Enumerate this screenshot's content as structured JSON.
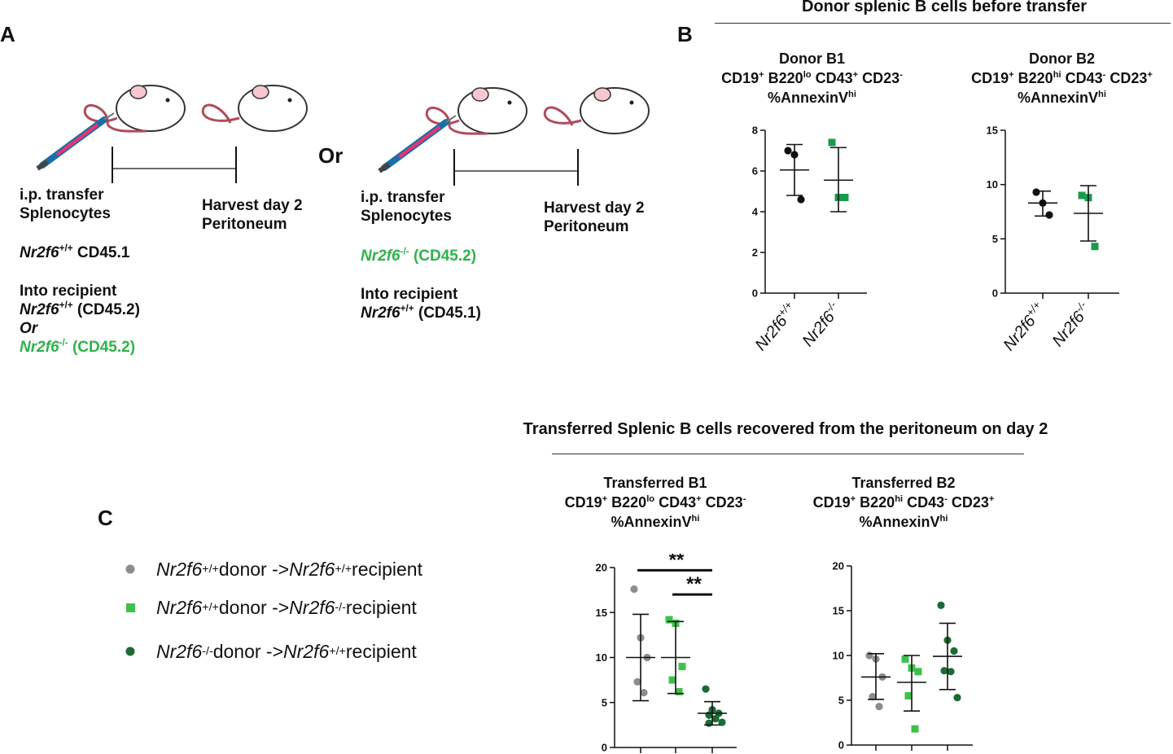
{
  "panels": {
    "a": "A",
    "b": "B",
    "c": "C"
  },
  "panel_a": {
    "or_between": "Or",
    "left": {
      "transfer_line1": "i.p. transfer",
      "transfer_line2": "Splenocytes",
      "harvest_line1": "Harvest day 2",
      "harvest_line2": "Peritoneum",
      "donor_gene": "Nr2f6",
      "donor_sup": "+/+",
      "donor_marker": " CD45.1",
      "into": "Into recipient",
      "rec1_gene": "Nr2f6",
      "rec1_sup": "+/+",
      "rec1_marker": " (CD45.2)",
      "or_word": "Or",
      "rec2_gene": "Nr2f6",
      "rec2_sup": "-/-",
      "rec2_marker": " (CD45.2)"
    },
    "right": {
      "transfer_line1": "i.p. transfer",
      "transfer_line2": "Splenocytes",
      "harvest_line1": "Harvest day 2",
      "harvest_line2": "Peritoneum",
      "donor_gene": "Nr2f6",
      "donor_sup": "-/-",
      "donor_marker": " (CD45.2)",
      "into": "Into recipient",
      "rec_gene": "Nr2f6",
      "rec_sup": "+/+",
      "rec_marker": " (CD45.1)"
    }
  },
  "panel_b": {
    "header": "Donor splenic B cells before transfer",
    "chart1_title": {
      "l1": "Donor B1",
      "l2a": "CD19",
      "l2b": "+",
      "l2c": " B220",
      "l2d": "lo",
      "l2e": " CD43",
      "l2f": "+",
      "l2g": " CD23",
      "l2h": "-",
      "l3a": "%AnnexinV",
      "l3b": "hi"
    },
    "chart2_title": {
      "l1": "Donor B2",
      "l2a": "CD19",
      "l2b": "+",
      "l2c": " B220",
      "l2d": "hi",
      "l2e": " CD43",
      "l2f": "-",
      "l2g": " CD23",
      "l2h": "+",
      "l3a": "%AnnexinV",
      "l3b": "hi"
    }
  },
  "panel_c": {
    "header": "Transferred Splenic B cells recovered from the peritoneum on day 2",
    "chart1_title": {
      "l1": "Transferred B1",
      "l2a": "CD19",
      "l2b": "+",
      "l2c": " B220",
      "l2d": "lo",
      "l2e": " CD43",
      "l2f": "+",
      "l2g": " CD23",
      "l2h": "-",
      "l3a": "%AnnexinV",
      "l3b": "hi"
    },
    "chart2_title": {
      "l1": "Transferred B2",
      "l2a": "CD19",
      "l2b": "+",
      "l2c": " B220",
      "l2d": "hi",
      "l2e": " CD43",
      "l2f": "-",
      "l2g": " CD23",
      "l2h": "+",
      "l3a": "%AnnexinV",
      "l3b": "hi"
    },
    "legend": [
      {
        "g1": "Nr2f6",
        "s1": "+/+",
        "mid": " donor -> ",
        "g2": "Nr2f6",
        "s2": "+/+",
        "end": " recipient",
        "color": "#8c8c8c",
        "marker": "circle"
      },
      {
        "g1": "Nr2f6",
        "s1": "+/+",
        "mid": " donor -> ",
        "g2": "Nr2f6",
        "s2": "-/-",
        "end": " recipient",
        "color": "#3ec14a",
        "marker": "square"
      },
      {
        "g1": "Nr2f6",
        "s1": "-/-",
        "mid": " donor -> ",
        "g2": "Nr2f6",
        "s2": "+/+",
        "end": " recipient",
        "color": "#1a6b34",
        "marker": "circle"
      }
    ]
  },
  "chart_data": [
    {
      "id": "b1",
      "type": "scatter",
      "title": "Donor B1 CD19+ B220lo CD43+ CD23- %AnnexinVhi",
      "ylim": [
        0,
        8
      ],
      "yticks": [
        0,
        2,
        4,
        6,
        8
      ],
      "categories": [
        "Nr2f6+/+",
        "Nr2f6-/-"
      ],
      "cat_gene": [
        "Nr2f6",
        "Nr2f6"
      ],
      "cat_sup": [
        "+/+",
        "-/-"
      ],
      "series": [
        {
          "name": "Nr2f6+/+",
          "color": "#111111",
          "marker": "circle",
          "points": [
            7.0,
            6.8,
            4.6
          ],
          "mean": 6.05,
          "err": [
            4.8,
            7.3
          ]
        },
        {
          "name": "Nr2f6-/-",
          "color": "#1a9a4e",
          "marker": "square",
          "points": [
            7.4,
            4.7,
            4.7
          ],
          "mean": 5.55,
          "err": [
            4.0,
            7.15
          ]
        }
      ],
      "significance": []
    },
    {
      "id": "b2",
      "type": "scatter",
      "title": "Donor B2 CD19+ B220hi CD43- CD23+ %AnnexinVhi",
      "ylim": [
        0,
        15
      ],
      "yticks": [
        0,
        5,
        10,
        15
      ],
      "categories": [
        "Nr2f6+/+",
        "Nr2f6-/-"
      ],
      "cat_gene": [
        "Nr2f6",
        "Nr2f6"
      ],
      "cat_sup": [
        "+/+",
        "-/-"
      ],
      "series": [
        {
          "name": "Nr2f6+/+",
          "color": "#111111",
          "marker": "circle",
          "points": [
            9.3,
            8.3,
            7.2
          ],
          "mean": 8.3,
          "err": [
            7.1,
            9.4
          ]
        },
        {
          "name": "Nr2f6-/-",
          "color": "#1a9a4e",
          "marker": "square",
          "points": [
            9.0,
            8.8,
            4.3
          ],
          "mean": 7.35,
          "err": [
            4.8,
            9.9
          ]
        }
      ],
      "significance": []
    },
    {
      "id": "c1",
      "type": "scatter",
      "title": "Transferred B1 CD19+ B220lo CD43+ CD23- %AnnexinVhi",
      "ylim": [
        0,
        20
      ],
      "yticks": [
        0,
        5,
        10,
        15,
        20
      ],
      "categories": [
        "",
        "",
        ""
      ],
      "series": [
        {
          "name": "Nr2f6+/+ donor -> Nr2f6+/+ recipient",
          "color": "#8c8c8c",
          "marker": "circle",
          "points": [
            17.6,
            12.2,
            10.0,
            7.3,
            6.1
          ],
          "mean": 10.0,
          "err": [
            5.2,
            14.8
          ]
        },
        {
          "name": "Nr2f6+/+ donor -> Nr2f6-/- recipient",
          "color": "#3ec14a",
          "marker": "square",
          "points": [
            14.2,
            13.8,
            9.0,
            7.5,
            6.2
          ],
          "mean": 10.0,
          "err": [
            6.0,
            14.0
          ]
        },
        {
          "name": "Nr2f6-/- donor -> Nr2f6+/+ recipient",
          "color": "#1a6b34",
          "marker": "circle",
          "points": [
            6.5,
            4.2,
            3.8,
            3.6,
            3.2,
            2.8,
            2.7
          ],
          "mean": 3.8,
          "err": [
            2.5,
            5.1
          ]
        }
      ],
      "significance": [
        {
          "from": 0,
          "to": 2,
          "y": 19.7,
          "label": "**"
        },
        {
          "from": 1,
          "to": 2,
          "y": 17.0,
          "label": "**"
        }
      ]
    },
    {
      "id": "c2",
      "type": "scatter",
      "title": "Transferred B2 CD19+ B220hi CD43- CD23+ %AnnexinVhi",
      "ylim": [
        0,
        20
      ],
      "yticks": [
        0,
        5,
        10,
        15,
        20
      ],
      "categories": [
        "",
        "",
        ""
      ],
      "series": [
        {
          "name": "Nr2f6+/+ donor -> Nr2f6+/+ recipient",
          "color": "#8c8c8c",
          "marker": "circle",
          "points": [
            10.0,
            9.6,
            7.6,
            5.4,
            4.3
          ],
          "mean": 7.6,
          "err": [
            5.1,
            10.2
          ]
        },
        {
          "name": "Nr2f6+/+ donor -> Nr2f6-/- recipient",
          "color": "#3ec14a",
          "marker": "square",
          "points": [
            9.6,
            8.6,
            8.2,
            5.5,
            1.8
          ],
          "mean": 7.0,
          "err": [
            3.8,
            10.0
          ]
        },
        {
          "name": "Nr2f6-/- donor -> Nr2f6+/+ recipient",
          "color": "#1a6b34",
          "marker": "circle",
          "points": [
            15.6,
            11.7,
            10.5,
            8.3,
            8.2,
            5.3
          ],
          "mean": 9.9,
          "err": [
            6.2,
            13.6
          ]
        }
      ],
      "significance": []
    }
  ]
}
